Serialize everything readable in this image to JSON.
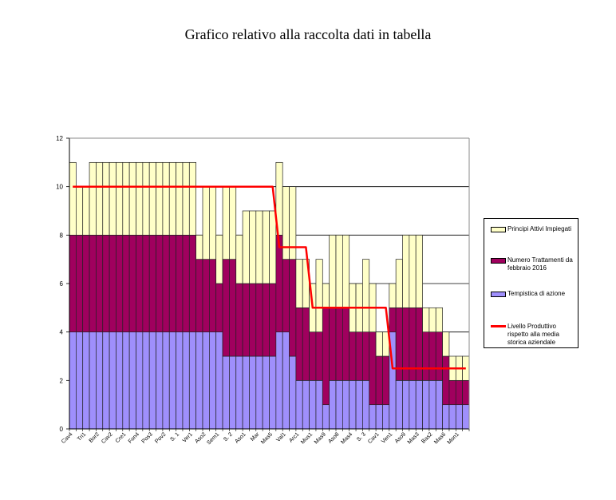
{
  "chart_data": {
    "type": "bar",
    "stacked": true,
    "title": "Grafico relativo alla raccolta dati in tabella",
    "xlabel": "",
    "ylabel": "",
    "ylim": [
      0,
      12
    ],
    "yticks": [
      "0",
      "2",
      "4",
      "6",
      "8",
      "10",
      "12"
    ],
    "grid": true,
    "legend_position": "right",
    "categories": [
      "Cav4",
      "",
      "Tri1",
      "",
      "Bor2",
      "",
      "Cav2",
      "",
      "Cre1",
      "",
      "Fon4",
      "",
      "Pos3",
      "",
      "Pov2",
      "",
      "S. 1",
      "",
      "Ver1",
      "",
      "Aso2",
      "",
      "Sem1",
      "",
      "S. 2",
      "",
      "Aso1",
      "",
      "Mar",
      "",
      "Mas5",
      "",
      "Val1",
      "",
      "Arc1",
      "",
      "Mus1",
      "",
      "Mas9",
      "",
      "Aso8",
      "",
      "Mas4",
      "",
      "S. 3",
      "",
      "Cav1",
      "",
      "Ven1",
      "",
      "Aso9",
      "",
      "Mas3",
      "",
      "Bas2",
      "",
      "Mas6",
      "",
      "Mon1",
      ""
    ],
    "series": [
      {
        "name": "Tempistica di azione",
        "kind": "bar",
        "color": "#9f8ffc",
        "values": [
          4,
          4,
          4,
          4,
          4,
          4,
          4,
          4,
          4,
          4,
          4,
          4,
          4,
          4,
          4,
          4,
          4,
          4,
          4,
          4,
          4,
          4,
          4,
          3,
          3,
          3,
          3,
          3,
          3,
          3,
          3,
          4,
          4,
          3,
          2,
          2,
          2,
          2,
          1,
          2,
          2,
          2,
          2,
          2,
          2,
          1,
          1,
          1,
          4,
          2,
          2,
          2,
          2,
          2,
          2,
          2,
          1,
          1,
          1,
          1
        ]
      },
      {
        "name": "Numero Trattamenti da febbraio 2016",
        "kind": "bar",
        "color": "#a0005e",
        "values": [
          4,
          4,
          4,
          4,
          4,
          4,
          4,
          4,
          4,
          4,
          4,
          4,
          4,
          4,
          4,
          4,
          4,
          4,
          4,
          3,
          3,
          3,
          2,
          4,
          4,
          3,
          3,
          3,
          3,
          3,
          3,
          4,
          3,
          4,
          3,
          3,
          2,
          2,
          4,
          3,
          3,
          3,
          2,
          2,
          2,
          3,
          2,
          2,
          1,
          3,
          3,
          3,
          3,
          2,
          2,
          2,
          2,
          1,
          1,
          1
        ]
      },
      {
        "name": "Principi Attivi Impiegati",
        "kind": "bar",
        "color": "#ffffc8",
        "values": [
          3,
          2,
          2,
          3,
          3,
          3,
          3,
          3,
          3,
          3,
          3,
          3,
          3,
          3,
          3,
          3,
          3,
          3,
          3,
          1,
          3,
          3,
          2,
          3,
          3,
          2,
          3,
          3,
          3,
          3,
          3,
          3,
          3,
          3,
          2,
          2,
          2,
          3,
          1,
          3,
          3,
          3,
          2,
          2,
          3,
          2,
          1,
          1,
          1,
          2,
          3,
          3,
          3,
          1,
          1,
          1,
          1,
          1,
          1,
          1
        ]
      },
      {
        "name": "Livello Produttivo rispetto alla media storica aziendale",
        "kind": "line",
        "color": "#ff0000",
        "values": [
          10,
          10,
          10,
          10,
          10,
          10,
          10,
          10,
          10,
          10,
          10,
          10,
          10,
          10,
          10,
          10,
          10,
          10,
          10,
          10,
          10,
          10,
          10,
          10,
          10,
          10,
          10,
          10,
          10,
          10,
          10,
          7.5,
          7.5,
          7.5,
          7.5,
          7.5,
          5,
          5,
          5,
          5,
          5,
          5,
          5,
          5,
          5,
          5,
          5,
          5,
          2.5,
          2.5,
          2.5,
          2.5,
          2.5,
          2.5,
          2.5,
          2.5,
          2.5,
          2.5,
          2.5,
          2.5
        ]
      }
    ],
    "legend": [
      {
        "label": "Principi Attivi Impiegati",
        "color": "#ffffc8"
      },
      {
        "label": "Numero Trattamenti da febbraio 2016",
        "color": "#a0005e"
      },
      {
        "label": "Tempistica di azione",
        "color": "#9f8ffc"
      },
      {
        "label": "Livello Produttivo rispetto alla media storica aziendale",
        "color": "#ff0000"
      }
    ]
  }
}
